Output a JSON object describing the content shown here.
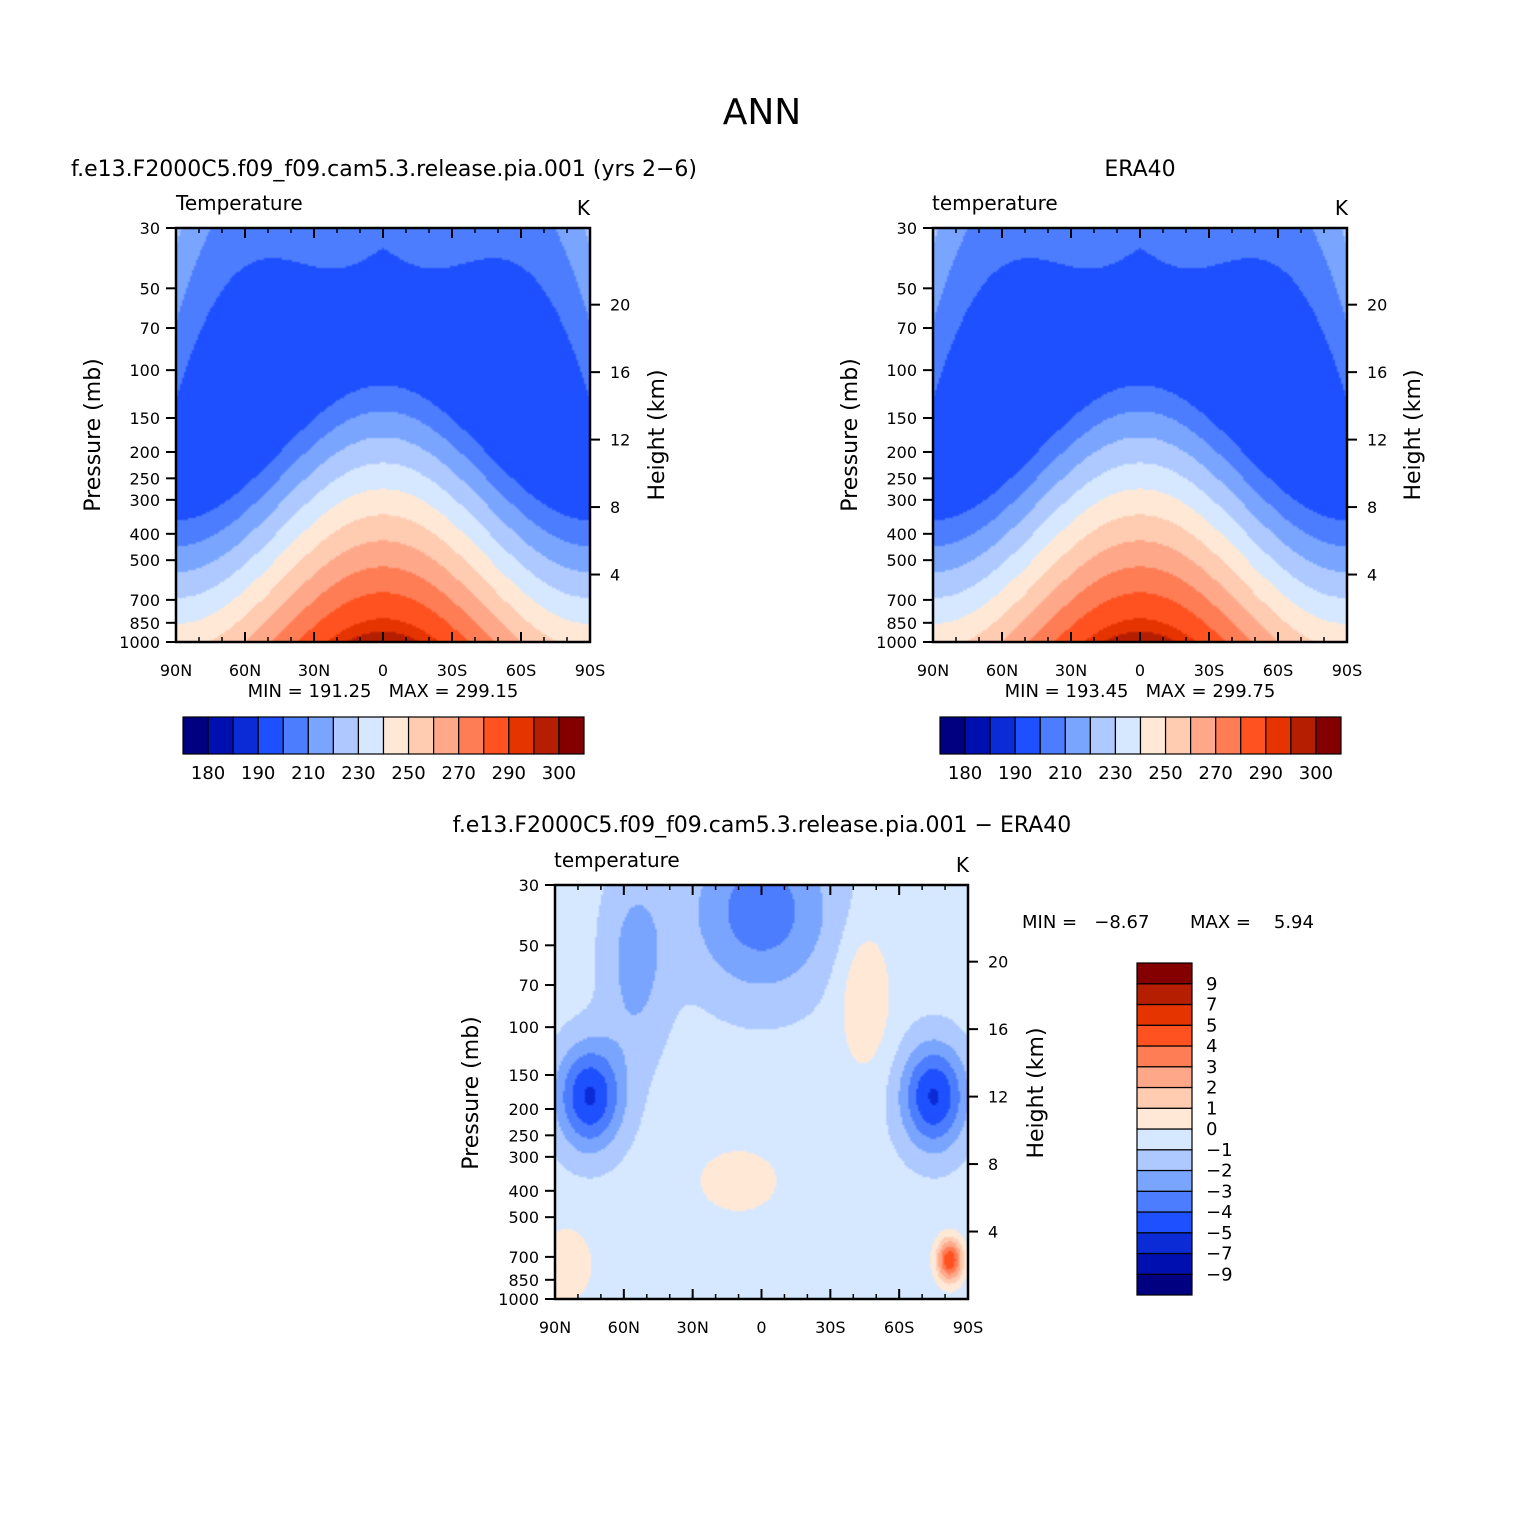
{
  "figure_title": "ANN",
  "colors": {
    "temperature_levels": [
      "#000080",
      "#0010b0",
      "#0a2bd6",
      "#1e50ff",
      "#4c7dff",
      "#7aa5ff",
      "#adc9ff",
      "#d6e8ff",
      "#ffe8d6",
      "#ffcbb1",
      "#ffa889",
      "#ff7d55",
      "#ff5220",
      "#e63400",
      "#b51e00",
      "#840000"
    ],
    "difference_levels": [
      "#000080",
      "#0010b0",
      "#0a2bd6",
      "#1e50ff",
      "#4c7dff",
      "#7aa5ff",
      "#adc9ff",
      "#d6e8ff",
      "#ffe8d6",
      "#ffcbb1",
      "#ffa889",
      "#ff7d55",
      "#ff5220",
      "#e63400",
      "#b51e00",
      "#840000"
    ]
  },
  "chart_data": [
    {
      "id": "model",
      "type": "heatmap",
      "title": "f.e13.F2000C5.f09_f09.cam5.3.release.pia.001 (yrs 2−6)",
      "left_label": "Temperature",
      "unit": "K",
      "ylabel": "Pressure (mb)",
      "right_ylabel": "Height (km)",
      "x_ticks": [
        "90N",
        "60N",
        "30N",
        "0",
        "30S",
        "60S",
        "90S"
      ],
      "y_ticks": [
        "30",
        "50",
        "70",
        "100",
        "150",
        "200",
        "250",
        "300",
        "400",
        "500",
        "700",
        "850",
        "1000"
      ],
      "right_ticks": [
        "20",
        "16",
        "12",
        "8",
        "4"
      ],
      "stats": "MIN = 191.25   MAX = 299.15",
      "colorbar_labels": [
        "180",
        "190",
        "210",
        "230",
        "250",
        "270",
        "290",
        "300"
      ],
      "field": {
        "kind": "temperature",
        "tmin": 191.25,
        "tmax": 299.15
      }
    },
    {
      "id": "obs",
      "type": "heatmap",
      "title": "ERA40",
      "left_label": "temperature",
      "unit": "K",
      "ylabel": "Pressure (mb)",
      "right_ylabel": "Height (km)",
      "x_ticks": [
        "90N",
        "60N",
        "30N",
        "0",
        "30S",
        "60S",
        "90S"
      ],
      "y_ticks": [
        "30",
        "50",
        "70",
        "100",
        "150",
        "200",
        "250",
        "300",
        "400",
        "500",
        "700",
        "850",
        "1000"
      ],
      "right_ticks": [
        "20",
        "16",
        "12",
        "8",
        "4"
      ],
      "stats": "MIN = 193.45   MAX = 299.75",
      "colorbar_labels": [
        "180",
        "190",
        "210",
        "230",
        "250",
        "270",
        "290",
        "300"
      ],
      "field": {
        "kind": "temperature",
        "tmin": 193.45,
        "tmax": 299.75
      }
    },
    {
      "id": "diff",
      "type": "heatmap",
      "title": "f.e13.F2000C5.f09_f09.cam5.3.release.pia.001 − ERA40",
      "left_label": "temperature",
      "unit": "K",
      "ylabel": "Pressure (mb)",
      "right_ylabel": "Height (km)",
      "x_ticks": [
        "90N",
        "60N",
        "30N",
        "0",
        "30S",
        "60S",
        "90S"
      ],
      "y_ticks": [
        "30",
        "50",
        "70",
        "100",
        "150",
        "200",
        "250",
        "300",
        "400",
        "500",
        "700",
        "850",
        "1000"
      ],
      "right_ticks": [
        "20",
        "16",
        "12",
        "8",
        "4"
      ],
      "stats_min": "MIN =   −8.67",
      "stats_max": "MAX =    5.94",
      "colorbar_labels": [
        "9",
        "7",
        "5",
        "4",
        "3",
        "2",
        "1",
        "0",
        "−1",
        "−2",
        "−3",
        "−4",
        "−5",
        "−7",
        "−9"
      ],
      "field": {
        "kind": "difference",
        "dmin": -8.67,
        "dmax": 5.94
      }
    }
  ]
}
